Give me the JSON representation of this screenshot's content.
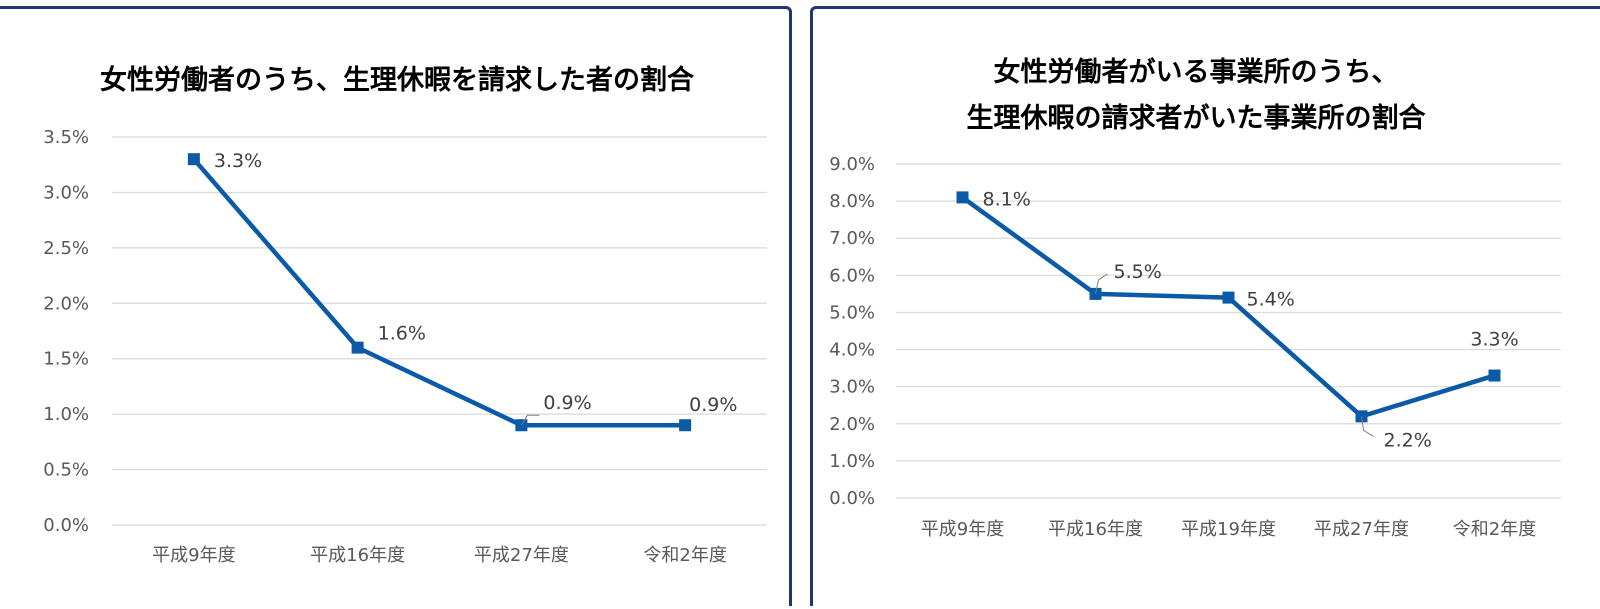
{
  "colors": {
    "series": "#0a5aa8",
    "border": "#1f3670",
    "grid": "#d9d9d9"
  },
  "chart_data": [
    {
      "type": "line",
      "title": [
        "女性労働者のうち、生理休暇を請求した者の割合"
      ],
      "categories": [
        "平成9年度",
        "平成16年度",
        "平成27年度",
        "令和2年度"
      ],
      "series": [
        {
          "values": [
            3.3,
            1.6,
            0.9,
            0.9
          ]
        }
      ],
      "data_labels": [
        "3.3%",
        "1.6%",
        "0.9%",
        "0.9%"
      ],
      "y_ticks": [
        "0.0%",
        "0.5%",
        "1.0%",
        "1.5%",
        "2.0%",
        "2.5%",
        "3.0%",
        "3.5%"
      ],
      "ylim": [
        0,
        3.5
      ],
      "grid": true,
      "xlabel": "",
      "ylabel": ""
    },
    {
      "type": "line",
      "title": [
        "女性労働者がいる事業所のうち、",
        "生理休暇の請求者がいた事業所の割合"
      ],
      "categories": [
        "平成9年度",
        "平成16年度",
        "平成19年度",
        "平成27年度",
        "令和2年度"
      ],
      "series": [
        {
          "values": [
            8.1,
            5.5,
            5.4,
            2.2,
            3.3
          ]
        }
      ],
      "data_labels": [
        "8.1%",
        "5.5%",
        "5.4%",
        "2.2%",
        "3.3%"
      ],
      "y_ticks": [
        "0.0%",
        "1.0%",
        "2.0%",
        "3.0%",
        "4.0%",
        "5.0%",
        "6.0%",
        "7.0%",
        "8.0%",
        "9.0%"
      ],
      "ylim": [
        0,
        9
      ],
      "grid": true,
      "xlabel": "",
      "ylabel": ""
    }
  ]
}
